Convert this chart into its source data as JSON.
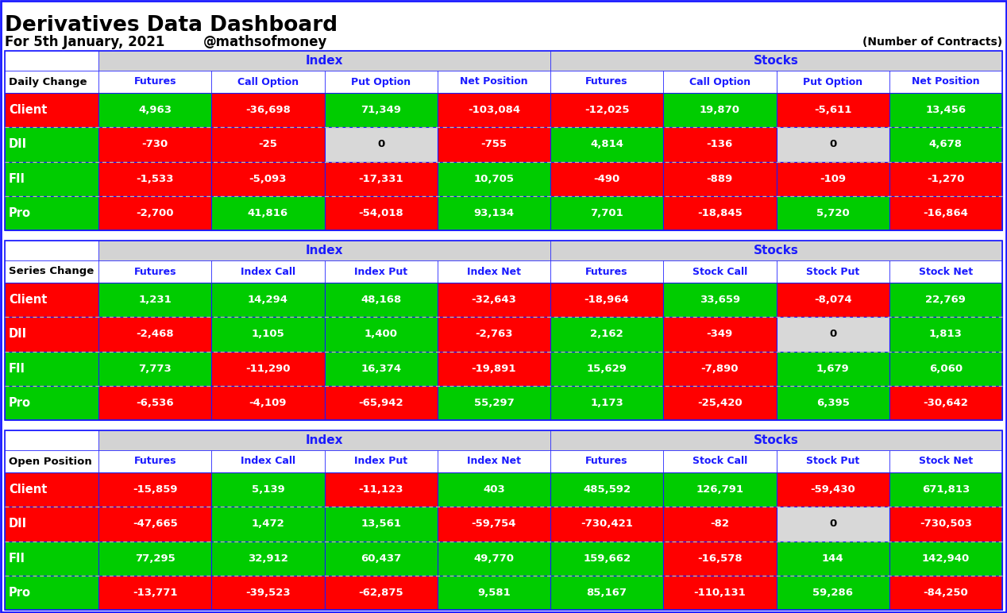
{
  "title": "Derivatives Data Dashboard",
  "subtitle_left": "For 5th January, 2021",
  "subtitle_mid": "@mathsofmoney",
  "subtitle_right": "(Number of Contracts)",
  "bg_color": "#ffffff",
  "border_color": "#1a1aff",
  "tables": [
    {
      "row_header": "Daily Change",
      "col_group1": "Index",
      "col_group2": "Stocks",
      "col_headers1": [
        "Futures",
        "Call Option",
        "Put Option",
        "Net Position"
      ],
      "col_headers2": [
        "Futures",
        "Call Option",
        "Put Option",
        "Net Position"
      ],
      "rows": [
        {
          "label": "Client",
          "label_bg": "#ff0000",
          "values": [
            "4,963",
            "-36,698",
            "71,349",
            "-103,084",
            "-12,025",
            "19,870",
            "-5,611",
            "13,456"
          ],
          "colors": [
            "#00cc00",
            "#ff0000",
            "#00cc00",
            "#ff0000",
            "#ff0000",
            "#00cc00",
            "#ff0000",
            "#00cc00"
          ]
        },
        {
          "label": "DII",
          "label_bg": "#00cc00",
          "values": [
            "-730",
            "-25",
            "0",
            "-755",
            "4,814",
            "-136",
            "0",
            "4,678"
          ],
          "colors": [
            "#ff0000",
            "#ff0000",
            "#d8d8d8",
            "#ff0000",
            "#00cc00",
            "#ff0000",
            "#d8d8d8",
            "#00cc00"
          ]
        },
        {
          "label": "FII",
          "label_bg": "#00cc00",
          "values": [
            "-1,533",
            "-5,093",
            "-17,331",
            "10,705",
            "-490",
            "-889",
            "-109",
            "-1,270"
          ],
          "colors": [
            "#ff0000",
            "#ff0000",
            "#ff0000",
            "#00cc00",
            "#ff0000",
            "#ff0000",
            "#ff0000",
            "#ff0000"
          ]
        },
        {
          "label": "Pro",
          "label_bg": "#00cc00",
          "values": [
            "-2,700",
            "41,816",
            "-54,018",
            "93,134",
            "7,701",
            "-18,845",
            "5,720",
            "-16,864"
          ],
          "colors": [
            "#ff0000",
            "#00cc00",
            "#ff0000",
            "#00cc00",
            "#00cc00",
            "#ff0000",
            "#00cc00",
            "#ff0000"
          ]
        }
      ]
    },
    {
      "row_header": "Series Change",
      "col_group1": "Index",
      "col_group2": "Stocks",
      "col_headers1": [
        "Futures",
        "Index Call",
        "Index Put",
        "Index Net"
      ],
      "col_headers2": [
        "Futures",
        "Stock Call",
        "Stock Put",
        "Stock Net"
      ],
      "rows": [
        {
          "label": "Client",
          "label_bg": "#ff0000",
          "values": [
            "1,231",
            "14,294",
            "48,168",
            "-32,643",
            "-18,964",
            "33,659",
            "-8,074",
            "22,769"
          ],
          "colors": [
            "#00cc00",
            "#00cc00",
            "#00cc00",
            "#ff0000",
            "#ff0000",
            "#00cc00",
            "#ff0000",
            "#00cc00"
          ]
        },
        {
          "label": "DII",
          "label_bg": "#ff0000",
          "values": [
            "-2,468",
            "1,105",
            "1,400",
            "-2,763",
            "2,162",
            "-349",
            "0",
            "1,813"
          ],
          "colors": [
            "#ff0000",
            "#00cc00",
            "#00cc00",
            "#ff0000",
            "#00cc00",
            "#ff0000",
            "#d8d8d8",
            "#00cc00"
          ]
        },
        {
          "label": "FII",
          "label_bg": "#00cc00",
          "values": [
            "7,773",
            "-11,290",
            "16,374",
            "-19,891",
            "15,629",
            "-7,890",
            "1,679",
            "6,060"
          ],
          "colors": [
            "#00cc00",
            "#ff0000",
            "#00cc00",
            "#ff0000",
            "#00cc00",
            "#ff0000",
            "#00cc00",
            "#00cc00"
          ]
        },
        {
          "label": "Pro",
          "label_bg": "#00cc00",
          "values": [
            "-6,536",
            "-4,109",
            "-65,942",
            "55,297",
            "1,173",
            "-25,420",
            "6,395",
            "-30,642"
          ],
          "colors": [
            "#ff0000",
            "#ff0000",
            "#ff0000",
            "#00cc00",
            "#00cc00",
            "#ff0000",
            "#00cc00",
            "#ff0000"
          ]
        }
      ]
    },
    {
      "row_header": "Open Position",
      "col_group1": "Index",
      "col_group2": "Stocks",
      "col_headers1": [
        "Futures",
        "Index Call",
        "Index Put",
        "Index Net"
      ],
      "col_headers2": [
        "Futures",
        "Stock Call",
        "Stock Put",
        "Stock Net"
      ],
      "rows": [
        {
          "label": "Client",
          "label_bg": "#ff0000",
          "values": [
            "-15,859",
            "5,139",
            "-11,123",
            "403",
            "485,592",
            "126,791",
            "-59,430",
            "671,813"
          ],
          "colors": [
            "#ff0000",
            "#00cc00",
            "#ff0000",
            "#00cc00",
            "#00cc00",
            "#00cc00",
            "#ff0000",
            "#00cc00"
          ]
        },
        {
          "label": "DII",
          "label_bg": "#ff0000",
          "values": [
            "-47,665",
            "1,472",
            "13,561",
            "-59,754",
            "-730,421",
            "-82",
            "0",
            "-730,503"
          ],
          "colors": [
            "#ff0000",
            "#00cc00",
            "#00cc00",
            "#ff0000",
            "#ff0000",
            "#ff0000",
            "#d8d8d8",
            "#ff0000"
          ]
        },
        {
          "label": "FII",
          "label_bg": "#00cc00",
          "values": [
            "77,295",
            "32,912",
            "60,437",
            "49,770",
            "159,662",
            "-16,578",
            "144",
            "142,940"
          ],
          "colors": [
            "#00cc00",
            "#00cc00",
            "#00cc00",
            "#00cc00",
            "#00cc00",
            "#ff0000",
            "#00cc00",
            "#00cc00"
          ]
        },
        {
          "label": "Pro",
          "label_bg": "#00cc00",
          "values": [
            "-13,771",
            "-39,523",
            "-62,875",
            "9,581",
            "85,167",
            "-110,131",
            "59,286",
            "-84,250"
          ],
          "colors": [
            "#ff0000",
            "#ff0000",
            "#ff0000",
            "#00cc00",
            "#00cc00",
            "#ff0000",
            "#00cc00",
            "#ff0000"
          ]
        }
      ]
    }
  ]
}
